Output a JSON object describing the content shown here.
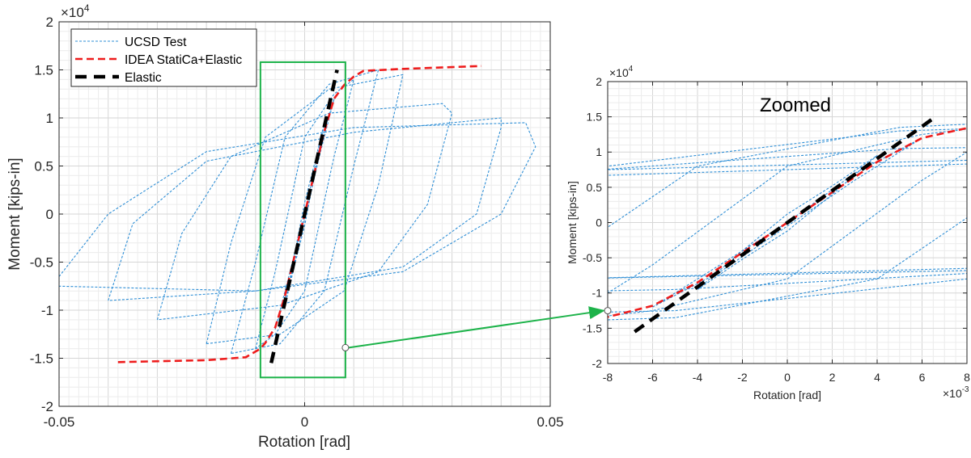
{
  "chart_data": [
    {
      "id": "main",
      "type": "line",
      "title": "",
      "xlabel": "Rotation [rad]",
      "ylabel": "Moment [kips-in]",
      "xlim": [
        -0.05,
        0.05
      ],
      "ylim": [
        -20000,
        20000
      ],
      "xticks": [
        -0.05,
        0,
        0.05
      ],
      "xtick_labels": [
        "-0.05",
        "0",
        "0.05"
      ],
      "yticks": [
        -20000,
        -15000,
        -10000,
        -5000,
        0,
        5000,
        10000,
        15000,
        20000
      ],
      "ytick_labels": [
        "-2",
        "-1.5",
        "-1",
        "-0.5",
        "0",
        "0.5",
        "1",
        "1.5",
        "2"
      ],
      "y_exponent_label": "×10",
      "y_exponent": "4",
      "grid": true,
      "legend": {
        "placement": "top-left",
        "entries": [
          "UCSD Test",
          "IDEA StatiCa+Elastic",
          "Elastic"
        ]
      },
      "zoom_box": {
        "x": [
          -0.009,
          0.0083
        ],
        "y": [
          -17000,
          15800
        ],
        "color": "#1db34a"
      }
    },
    {
      "id": "zoomed",
      "type": "line",
      "title": "Zoomed",
      "xlabel": "Rotation [rad]",
      "ylabel": "Moment [kips-in]",
      "xlim": [
        -0.008,
        0.008
      ],
      "ylim": [
        -20000,
        20000
      ],
      "xticks": [
        -0.008,
        -0.006,
        -0.004,
        -0.002,
        0,
        0.002,
        0.004,
        0.006,
        0.008
      ],
      "xtick_labels": [
        "-8",
        "-6",
        "-4",
        "-2",
        "0",
        "2",
        "4",
        "6",
        "8"
      ],
      "x_exponent_label": "×10",
      "x_exponent": "-3",
      "yticks": [
        -20000,
        -15000,
        -10000,
        -5000,
        0,
        5000,
        10000,
        15000,
        20000
      ],
      "ytick_labels": [
        "-2",
        "-1.5",
        "-1",
        "-0.5",
        "0",
        "0.5",
        "1",
        "1.5",
        "2"
      ],
      "y_exponent_label": "×10",
      "y_exponent": "4",
      "grid": true
    }
  ],
  "series": {
    "ucsd": {
      "name": "UCSD Test",
      "color": "#2f8fd6",
      "style": "dotted",
      "loops": [
        [
          [
            -0.004,
            -9500
          ],
          [
            -0.002,
            -5200
          ],
          [
            0,
            -1200
          ],
          [
            0.002,
            4000
          ],
          [
            0.004,
            9500
          ],
          [
            0.002,
            5200
          ],
          [
            0,
            1200
          ],
          [
            -0.002,
            -4000
          ],
          [
            -0.004,
            -9500
          ]
        ],
        [
          [
            -0.006,
            -12000
          ],
          [
            -0.003,
            -6000
          ],
          [
            0,
            0
          ],
          [
            0.003,
            7000
          ],
          [
            0.006,
            12000
          ],
          [
            0.003,
            6000
          ],
          [
            0,
            -500
          ],
          [
            -0.003,
            -7000
          ],
          [
            -0.006,
            -12000
          ]
        ],
        [
          [
            -0.01,
            -14000
          ],
          [
            -0.006,
            -6000
          ],
          [
            0,
            8000
          ],
          [
            0.006,
            12500
          ],
          [
            0.01,
            14000
          ],
          [
            0.006,
            6000
          ],
          [
            0,
            -8000
          ],
          [
            -0.006,
            -12500
          ],
          [
            -0.01,
            -14000
          ]
        ],
        [
          [
            -0.015,
            -14500
          ],
          [
            -0.01,
            -5000
          ],
          [
            -0.004,
            8000
          ],
          [
            0.005,
            13500
          ],
          [
            0.015,
            15000
          ],
          [
            0.01,
            5000
          ],
          [
            0.004,
            -8000
          ],
          [
            -0.005,
            -13500
          ],
          [
            -0.015,
            -14500
          ]
        ],
        [
          [
            -0.02,
            -13500
          ],
          [
            -0.015,
            -3000
          ],
          [
            -0.008,
            8000
          ],
          [
            0.005,
            13000
          ],
          [
            0.02,
            14500
          ],
          [
            0.015,
            3000
          ],
          [
            0.008,
            -8000
          ],
          [
            -0.005,
            -12500
          ],
          [
            -0.02,
            -13500
          ]
        ],
        [
          [
            -0.03,
            -11000
          ],
          [
            -0.025,
            -2000
          ],
          [
            -0.015,
            6000
          ],
          [
            0.005,
            10500
          ],
          [
            0.028,
            11500
          ],
          [
            0.03,
            10500
          ],
          [
            0.025,
            1000
          ],
          [
            0.015,
            -6000
          ],
          [
            -0.005,
            -9500
          ],
          [
            -0.03,
            -11000
          ]
        ],
        [
          [
            -0.04,
            -9000
          ],
          [
            -0.035,
            -1000
          ],
          [
            -0.02,
            5500
          ],
          [
            0.01,
            8500
          ],
          [
            0.04,
            10000
          ],
          [
            0.04,
            9000
          ],
          [
            0.035,
            0
          ],
          [
            0.02,
            -5500
          ],
          [
            -0.01,
            -8000
          ],
          [
            -0.04,
            -9000
          ]
        ],
        [
          [
            -0.05,
            -6500
          ],
          [
            -0.04,
            0
          ],
          [
            -0.02,
            6500
          ],
          [
            0.01,
            9000
          ],
          [
            0.045,
            9500
          ],
          [
            0.047,
            7000
          ],
          [
            0.04,
            0
          ],
          [
            0.02,
            -6000
          ],
          [
            -0.01,
            -8000
          ],
          [
            -0.05,
            -7500
          ],
          [
            -0.05,
            -6500
          ]
        ]
      ]
    },
    "idea": {
      "name": "IDEA StatiCa+Elastic",
      "color": "#ee1c1c",
      "style": "dashed",
      "points": [
        [
          -0.038,
          -15400
        ],
        [
          -0.02,
          -15200
        ],
        [
          -0.012,
          -14900
        ],
        [
          -0.009,
          -14000
        ],
        [
          -0.008,
          -13400
        ],
        [
          -0.006,
          -11800
        ],
        [
          -0.004,
          -8500
        ],
        [
          0,
          0
        ],
        [
          0.004,
          8600
        ],
        [
          0.006,
          12000
        ],
        [
          0.008,
          13400
        ],
        [
          0.01,
          14300
        ],
        [
          0.012,
          14900
        ],
        [
          0.02,
          15100
        ],
        [
          0.036,
          15400
        ]
      ]
    },
    "elastic": {
      "name": "Elastic",
      "color": "#000000",
      "style": "dashed-thick",
      "points": [
        [
          -0.0068,
          -15500
        ],
        [
          0.0066,
          15000
        ]
      ]
    }
  },
  "annotation": {
    "arrow_from": [
      0.0083,
      -13900
    ],
    "arrow_to": [
      -0.008,
      -12500
    ],
    "color": "#1db34a"
  }
}
